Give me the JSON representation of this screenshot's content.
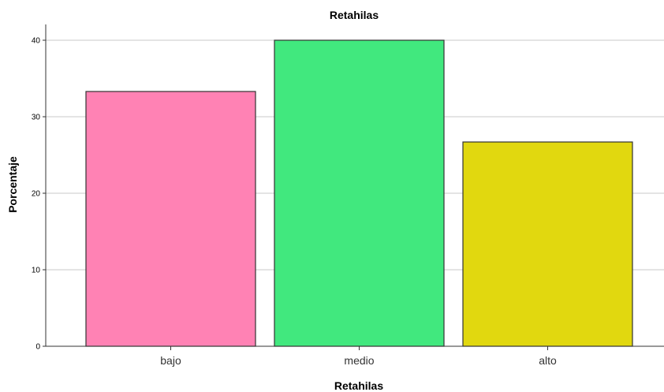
{
  "chart_data": {
    "type": "bar",
    "title": "Retahilas",
    "xlabel": "Retahilas",
    "ylabel": "Porcentaje",
    "categories": [
      "bajo",
      "medio",
      "alto"
    ],
    "values": [
      33.3,
      40.0,
      26.7
    ],
    "colors": [
      "#ff82b4",
      "#41e87e",
      "#e1d80f"
    ],
    "ylim": [
      0,
      40
    ],
    "yticks": [
      0,
      10,
      20,
      30,
      40
    ],
    "grid": true
  }
}
